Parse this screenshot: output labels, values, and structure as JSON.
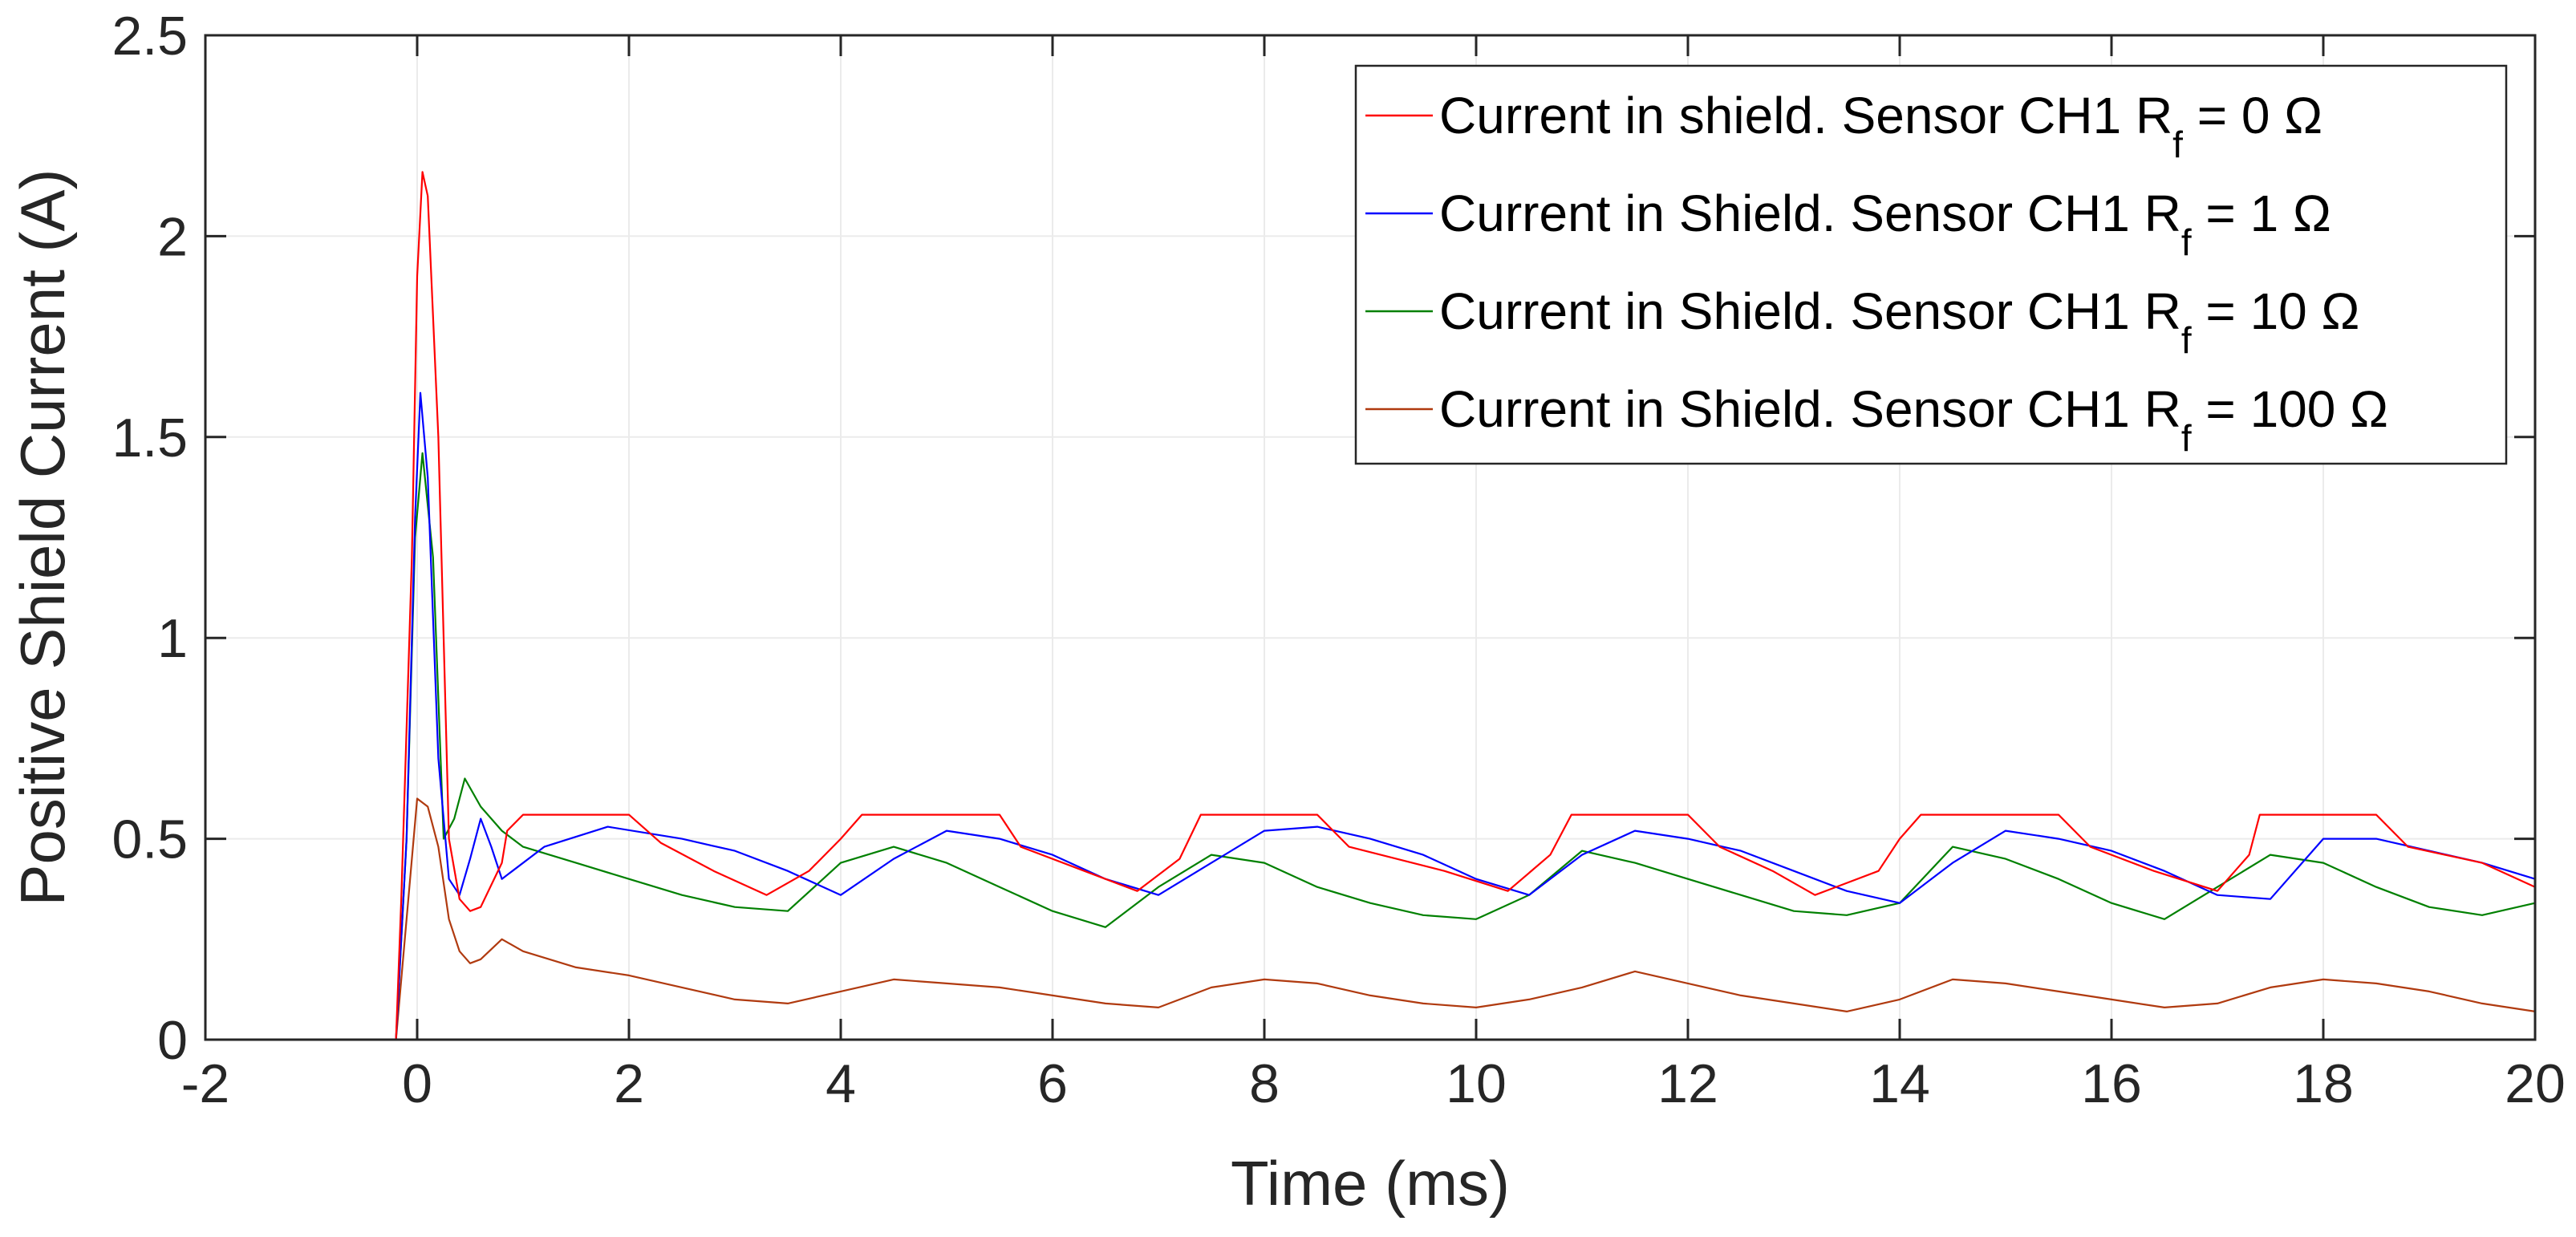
{
  "chart_data": {
    "type": "line",
    "title": "",
    "xlabel": "Time (ms)",
    "ylabel": "Positive Shield Current (A)",
    "xlim": [
      -2,
      20
    ],
    "ylim": [
      0,
      2.5
    ],
    "xticks": [
      -2,
      0,
      2,
      4,
      6,
      8,
      10,
      12,
      14,
      16,
      18,
      20
    ],
    "yticks": [
      0,
      0.5,
      1,
      1.5,
      2,
      2.5
    ],
    "xtick_labels": [
      "-2",
      "0",
      "2",
      "4",
      "6",
      "8",
      "10",
      "12",
      "14",
      "16",
      "18",
      "20"
    ],
    "ytick_labels": [
      "0",
      "0.5",
      "1",
      "1.5",
      "2",
      "2.5"
    ],
    "grid": true,
    "legend_position": "top-right",
    "series": [
      {
        "name": "Current in shield. Sensor CH1 Rf = 0 Ω",
        "legend_main": "Current in shield. Sensor CH1 R",
        "legend_sub": "f",
        "legend_tail": " = 0 Ω",
        "color": "#ff0000",
        "points": [
          [
            -2,
            0
          ],
          [
            -0.2,
            0
          ],
          [
            -0.15,
            0.35
          ],
          [
            -0.05,
            1.2
          ],
          [
            0,
            1.9
          ],
          [
            0.05,
            2.16
          ],
          [
            0.1,
            2.1
          ],
          [
            0.2,
            1.5
          ],
          [
            0.3,
            0.5
          ],
          [
            0.4,
            0.35
          ],
          [
            0.5,
            0.32
          ],
          [
            0.6,
            0.33
          ],
          [
            0.8,
            0.44
          ],
          [
            0.85,
            0.52
          ],
          [
            1.0,
            0.56
          ],
          [
            2.0,
            0.56
          ],
          [
            2.3,
            0.49
          ],
          [
            2.8,
            0.42
          ],
          [
            3.3,
            0.36
          ],
          [
            3.7,
            0.42
          ],
          [
            4.0,
            0.5
          ],
          [
            4.2,
            0.56
          ],
          [
            5.5,
            0.56
          ],
          [
            5.7,
            0.48
          ],
          [
            6.3,
            0.42
          ],
          [
            6.8,
            0.37
          ],
          [
            7.2,
            0.45
          ],
          [
            7.4,
            0.56
          ],
          [
            8.5,
            0.56
          ],
          [
            8.8,
            0.48
          ],
          [
            9.7,
            0.42
          ],
          [
            10.3,
            0.37
          ],
          [
            10.7,
            0.46
          ],
          [
            10.9,
            0.56
          ],
          [
            12.0,
            0.56
          ],
          [
            12.3,
            0.48
          ],
          [
            12.8,
            0.42
          ],
          [
            13.2,
            0.36
          ],
          [
            13.8,
            0.42
          ],
          [
            14.0,
            0.5
          ],
          [
            14.2,
            0.56
          ],
          [
            15.5,
            0.56
          ],
          [
            15.8,
            0.48
          ],
          [
            16.4,
            0.42
          ],
          [
            17.0,
            0.37
          ],
          [
            17.3,
            0.46
          ],
          [
            17.4,
            0.56
          ],
          [
            18.5,
            0.56
          ],
          [
            18.8,
            0.48
          ],
          [
            19.5,
            0.44
          ],
          [
            20,
            0.38
          ]
        ]
      },
      {
        "name": "Current in Shield. Sensor CH1 Rf = 1 Ω",
        "legend_main": "Current in Shield. Sensor CH1 R",
        "legend_sub": "f",
        "legend_tail": " = 1 Ω",
        "color": "#0000ff",
        "points": [
          [
            -2,
            0
          ],
          [
            -0.2,
            0
          ],
          [
            -0.1,
            0.5
          ],
          [
            -0.02,
            1.3
          ],
          [
            0.03,
            1.61
          ],
          [
            0.1,
            1.4
          ],
          [
            0.2,
            0.7
          ],
          [
            0.3,
            0.4
          ],
          [
            0.4,
            0.36
          ],
          [
            0.5,
            0.45
          ],
          [
            0.6,
            0.55
          ],
          [
            0.7,
            0.48
          ],
          [
            0.8,
            0.4
          ],
          [
            1.2,
            0.48
          ],
          [
            1.8,
            0.53
          ],
          [
            2.5,
            0.5
          ],
          [
            3.0,
            0.47
          ],
          [
            3.5,
            0.42
          ],
          [
            4.0,
            0.36
          ],
          [
            4.5,
            0.45
          ],
          [
            5.0,
            0.52
          ],
          [
            5.5,
            0.5
          ],
          [
            6.0,
            0.46
          ],
          [
            6.5,
            0.4
          ],
          [
            7.0,
            0.36
          ],
          [
            7.5,
            0.44
          ],
          [
            8.0,
            0.52
          ],
          [
            8.5,
            0.53
          ],
          [
            9.0,
            0.5
          ],
          [
            9.5,
            0.46
          ],
          [
            10.0,
            0.4
          ],
          [
            10.5,
            0.36
          ],
          [
            11.0,
            0.46
          ],
          [
            11.5,
            0.52
          ],
          [
            12.0,
            0.5
          ],
          [
            12.5,
            0.47
          ],
          [
            13.0,
            0.42
          ],
          [
            13.5,
            0.37
          ],
          [
            14.0,
            0.34
          ],
          [
            14.5,
            0.44
          ],
          [
            15.0,
            0.52
          ],
          [
            15.5,
            0.5
          ],
          [
            16.0,
            0.47
          ],
          [
            16.5,
            0.42
          ],
          [
            17.0,
            0.36
          ],
          [
            17.5,
            0.35
          ],
          [
            18.0,
            0.5
          ],
          [
            18.5,
            0.5
          ],
          [
            19.0,
            0.47
          ],
          [
            19.5,
            0.44
          ],
          [
            20,
            0.4
          ]
        ]
      },
      {
        "name": "Current in Shield. Sensor CH1 Rf = 10 Ω",
        "legend_main": "Current in Shield. Sensor CH1 R",
        "legend_sub": "f",
        "legend_tail": " = 10 Ω",
        "color": "#008000",
        "points": [
          [
            -2,
            0
          ],
          [
            -0.2,
            0
          ],
          [
            -0.1,
            0.5
          ],
          [
            -0.02,
            1.25
          ],
          [
            0.05,
            1.46
          ],
          [
            0.15,
            1.2
          ],
          [
            0.25,
            0.5
          ],
          [
            0.35,
            0.55
          ],
          [
            0.45,
            0.65
          ],
          [
            0.6,
            0.58
          ],
          [
            0.8,
            0.52
          ],
          [
            1.0,
            0.48
          ],
          [
            1.5,
            0.44
          ],
          [
            2.0,
            0.4
          ],
          [
            2.5,
            0.36
          ],
          [
            3.0,
            0.33
          ],
          [
            3.5,
            0.32
          ],
          [
            4.0,
            0.44
          ],
          [
            4.5,
            0.48
          ],
          [
            5.0,
            0.44
          ],
          [
            5.5,
            0.38
          ],
          [
            6.0,
            0.32
          ],
          [
            6.5,
            0.28
          ],
          [
            7.0,
            0.38
          ],
          [
            7.5,
            0.46
          ],
          [
            8.0,
            0.44
          ],
          [
            8.5,
            0.38
          ],
          [
            9.0,
            0.34
          ],
          [
            9.5,
            0.31
          ],
          [
            10.0,
            0.3
          ],
          [
            10.5,
            0.36
          ],
          [
            11.0,
            0.47
          ],
          [
            11.5,
            0.44
          ],
          [
            12.0,
            0.4
          ],
          [
            12.5,
            0.36
          ],
          [
            13.0,
            0.32
          ],
          [
            13.5,
            0.31
          ],
          [
            14.0,
            0.34
          ],
          [
            14.5,
            0.48
          ],
          [
            15.0,
            0.45
          ],
          [
            15.5,
            0.4
          ],
          [
            16.0,
            0.34
          ],
          [
            16.5,
            0.3
          ],
          [
            17.0,
            0.38
          ],
          [
            17.5,
            0.46
          ],
          [
            18.0,
            0.44
          ],
          [
            18.5,
            0.38
          ],
          [
            19.0,
            0.33
          ],
          [
            19.5,
            0.31
          ],
          [
            20,
            0.34
          ]
        ]
      },
      {
        "name": "Current in Shield. Sensor CH1 Rf = 100 Ω",
        "legend_main": "Current in Shield. Sensor CH1 R",
        "legend_sub": "f",
        "legend_tail": " = 100 Ω",
        "color": "#b03a0f",
        "points": [
          [
            -2,
            0
          ],
          [
            -0.2,
            0
          ],
          [
            -0.1,
            0.3
          ],
          [
            0,
            0.6
          ],
          [
            0.1,
            0.58
          ],
          [
            0.2,
            0.48
          ],
          [
            0.3,
            0.3
          ],
          [
            0.4,
            0.22
          ],
          [
            0.5,
            0.19
          ],
          [
            0.6,
            0.2
          ],
          [
            0.8,
            0.25
          ],
          [
            1.0,
            0.22
          ],
          [
            1.5,
            0.18
          ],
          [
            2.0,
            0.16
          ],
          [
            2.5,
            0.13
          ],
          [
            3.0,
            0.1
          ],
          [
            3.5,
            0.09
          ],
          [
            4.0,
            0.12
          ],
          [
            4.5,
            0.15
          ],
          [
            5.0,
            0.14
          ],
          [
            5.5,
            0.13
          ],
          [
            6.0,
            0.11
          ],
          [
            6.5,
            0.09
          ],
          [
            7.0,
            0.08
          ],
          [
            7.5,
            0.13
          ],
          [
            8.0,
            0.15
          ],
          [
            8.5,
            0.14
          ],
          [
            9.0,
            0.11
          ],
          [
            9.5,
            0.09
          ],
          [
            10.0,
            0.08
          ],
          [
            10.5,
            0.1
          ],
          [
            11.0,
            0.13
          ],
          [
            11.5,
            0.17
          ],
          [
            12.0,
            0.14
          ],
          [
            12.5,
            0.11
          ],
          [
            13.0,
            0.09
          ],
          [
            13.5,
            0.07
          ],
          [
            14.0,
            0.1
          ],
          [
            14.5,
            0.15
          ],
          [
            15.0,
            0.14
          ],
          [
            15.5,
            0.12
          ],
          [
            16.0,
            0.1
          ],
          [
            16.5,
            0.08
          ],
          [
            17.0,
            0.09
          ],
          [
            17.5,
            0.13
          ],
          [
            18.0,
            0.15
          ],
          [
            18.5,
            0.14
          ],
          [
            19.0,
            0.12
          ],
          [
            19.5,
            0.09
          ],
          [
            20,
            0.07
          ]
        ]
      }
    ]
  }
}
